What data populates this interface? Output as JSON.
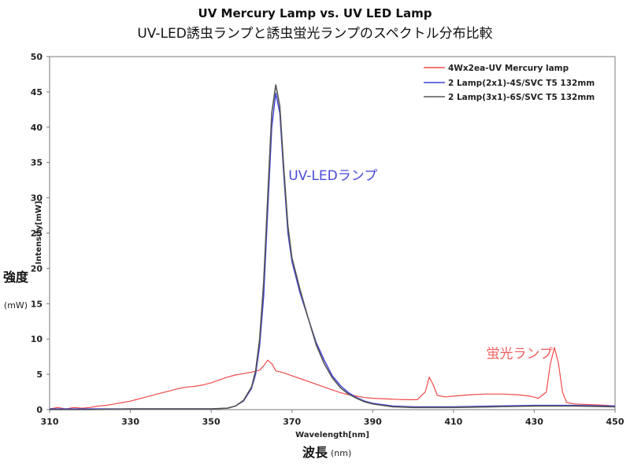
{
  "chart_data": {
    "type": "line",
    "title": "UV Mercury Lamp vs. UV LED Lamp",
    "subtitle": "UV-LED誘虫ランプと誘虫蛍光ランプのスペクトル分布比較",
    "xlabel": "Wavelength[nm]",
    "xlabel_ja": "波長",
    "xlabel_unit": "(nm)",
    "ylabel": "Intensity[mW]",
    "ylabel_ja": "強度",
    "ylabel_unit": "(mW)",
    "xlim": [
      310,
      450
    ],
    "ylim": [
      0,
      50
    ],
    "xticks": [
      310,
      330,
      350,
      370,
      390,
      410,
      430,
      450
    ],
    "yticks": [
      0,
      5,
      10,
      15,
      20,
      25,
      30,
      35,
      40,
      45,
      50
    ],
    "grid": false,
    "legend_position": "top-right",
    "annotations": [
      {
        "text": "UV-LEDランプ",
        "x": 366,
        "y": 32.5,
        "color": "#4a4ad8"
      },
      {
        "text": "蛍光ランプ",
        "x": 415,
        "y": 7.3,
        "color": "#f06060"
      }
    ],
    "series": [
      {
        "name": "4Wx2ea-UV Mercury lamp",
        "color": "#f04a4a",
        "points": [
          [
            310,
            0.1
          ],
          [
            312,
            0.3
          ],
          [
            314,
            0.1
          ],
          [
            316,
            0.3
          ],
          [
            318,
            0.2
          ],
          [
            320,
            0.3
          ],
          [
            322,
            0.5
          ],
          [
            324,
            0.6
          ],
          [
            326,
            0.8
          ],
          [
            328,
            1.0
          ],
          [
            330,
            1.2
          ],
          [
            332,
            1.5
          ],
          [
            334,
            1.8
          ],
          [
            336,
            2.1
          ],
          [
            338,
            2.4
          ],
          [
            340,
            2.7
          ],
          [
            342,
            3.0
          ],
          [
            344,
            3.2
          ],
          [
            346,
            3.3
          ],
          [
            348,
            3.5
          ],
          [
            350,
            3.8
          ],
          [
            352,
            4.2
          ],
          [
            354,
            4.6
          ],
          [
            356,
            4.9
          ],
          [
            358,
            5.1
          ],
          [
            360,
            5.3
          ],
          [
            362,
            5.6
          ],
          [
            363,
            6.2
          ],
          [
            364,
            7.0
          ],
          [
            365,
            6.5
          ],
          [
            366,
            5.5
          ],
          [
            368,
            5.2
          ],
          [
            370,
            4.8
          ],
          [
            372,
            4.4
          ],
          [
            374,
            4.0
          ],
          [
            376,
            3.6
          ],
          [
            378,
            3.2
          ],
          [
            380,
            2.8
          ],
          [
            382,
            2.4
          ],
          [
            384,
            2.1
          ],
          [
            386,
            1.9
          ],
          [
            388,
            1.7
          ],
          [
            390,
            1.6
          ],
          [
            394,
            1.5
          ],
          [
            398,
            1.4
          ],
          [
            401,
            1.4
          ],
          [
            403,
            2.5
          ],
          [
            404,
            4.6
          ],
          [
            405,
            3.5
          ],
          [
            406,
            2.0
          ],
          [
            408,
            1.8
          ],
          [
            410,
            1.9
          ],
          [
            414,
            2.1
          ],
          [
            418,
            2.2
          ],
          [
            422,
            2.2
          ],
          [
            426,
            2.1
          ],
          [
            429,
            1.9
          ],
          [
            431,
            1.6
          ],
          [
            433,
            2.5
          ],
          [
            434,
            6.5
          ],
          [
            435,
            8.8
          ],
          [
            436,
            6.5
          ],
          [
            437,
            2.5
          ],
          [
            438,
            1.0
          ],
          [
            440,
            0.8
          ],
          [
            444,
            0.7
          ],
          [
            448,
            0.6
          ],
          [
            450,
            0.5
          ]
        ]
      },
      {
        "name": "2 Lamp(2x1)-4S/SVC T5 132mm",
        "color": "#4040d8",
        "points": [
          [
            310,
            0.1
          ],
          [
            320,
            0.1
          ],
          [
            330,
            0.1
          ],
          [
            340,
            0.1
          ],
          [
            350,
            0.1
          ],
          [
            354,
            0.2
          ],
          [
            356,
            0.5
          ],
          [
            358,
            1.2
          ],
          [
            360,
            3.0
          ],
          [
            361,
            5.0
          ],
          [
            362,
            9.0
          ],
          [
            363,
            16.0
          ],
          [
            364,
            28.0
          ],
          [
            365,
            40.0
          ],
          [
            366,
            44.8
          ],
          [
            367,
            42.0
          ],
          [
            368,
            33.0
          ],
          [
            369,
            25.0
          ],
          [
            370,
            21.0
          ],
          [
            372,
            16.5
          ],
          [
            374,
            13.0
          ],
          [
            376,
            9.5
          ],
          [
            378,
            7.0
          ],
          [
            380,
            4.8
          ],
          [
            382,
            3.4
          ],
          [
            384,
            2.4
          ],
          [
            386,
            1.7
          ],
          [
            388,
            1.2
          ],
          [
            390,
            0.9
          ],
          [
            395,
            0.5
          ],
          [
            400,
            0.4
          ],
          [
            410,
            0.4
          ],
          [
            420,
            0.5
          ],
          [
            430,
            0.6
          ],
          [
            440,
            0.6
          ],
          [
            450,
            0.5
          ]
        ]
      },
      {
        "name": "2 Lamp(3x1)-6S/SVC T5 132mm",
        "color": "#555555",
        "points": [
          [
            310,
            0.0
          ],
          [
            320,
            0.0
          ],
          [
            330,
            0.1
          ],
          [
            340,
            0.1
          ],
          [
            350,
            0.1
          ],
          [
            354,
            0.2
          ],
          [
            356,
            0.5
          ],
          [
            358,
            1.3
          ],
          [
            360,
            3.2
          ],
          [
            361,
            5.5
          ],
          [
            362,
            10.0
          ],
          [
            363,
            18.0
          ],
          [
            364,
            30.0
          ],
          [
            365,
            42.0
          ],
          [
            366,
            46.0
          ],
          [
            367,
            43.0
          ],
          [
            368,
            34.0
          ],
          [
            369,
            26.0
          ],
          [
            370,
            21.5
          ],
          [
            372,
            17.0
          ],
          [
            374,
            13.0
          ],
          [
            376,
            9.2
          ],
          [
            378,
            6.5
          ],
          [
            380,
            4.5
          ],
          [
            382,
            3.1
          ],
          [
            384,
            2.2
          ],
          [
            386,
            1.6
          ],
          [
            388,
            1.1
          ],
          [
            390,
            0.8
          ],
          [
            395,
            0.4
          ],
          [
            400,
            0.3
          ],
          [
            410,
            0.3
          ],
          [
            420,
            0.4
          ],
          [
            430,
            0.5
          ],
          [
            440,
            0.5
          ],
          [
            450,
            0.4
          ]
        ]
      }
    ]
  }
}
